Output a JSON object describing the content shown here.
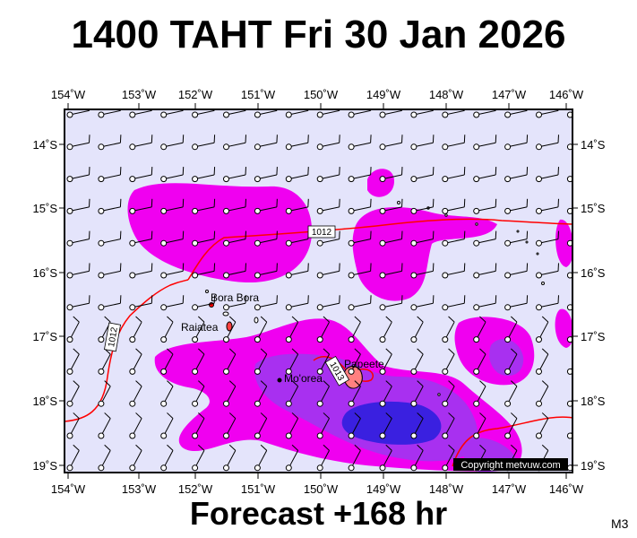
{
  "title": "1400 TAHT Fri 30 Jan 2026",
  "footer": "Forecast +168 hr",
  "corner_code": "M3",
  "copyright": "Copyright metvuw.com",
  "map": {
    "lon_ticks": [
      "154˚W",
      "153˚W",
      "152˚W",
      "151˚W",
      "150˚W",
      "149˚W",
      "148˚W",
      "147˚W",
      "146˚W"
    ],
    "lat_ticks": [
      "14˚S",
      "15˚S",
      "16˚S",
      "17˚S",
      "18˚S",
      "19˚S"
    ],
    "places": [
      {
        "name": "Bora Bora"
      },
      {
        "name": "Raiatea"
      },
      {
        "name": "Mo'orea"
      },
      {
        "name": "Papeete"
      }
    ],
    "isobars": [
      {
        "label": "1012"
      },
      {
        "label": "1012"
      },
      {
        "label": "1013"
      }
    ],
    "colors": {
      "background": "#e4e4fb",
      "rain_light": "#f000f0",
      "rain_mid": "#a830f0",
      "rain_heavy": "#3a20e0",
      "isobar": "#ff0000",
      "coast": "#000000"
    }
  }
}
